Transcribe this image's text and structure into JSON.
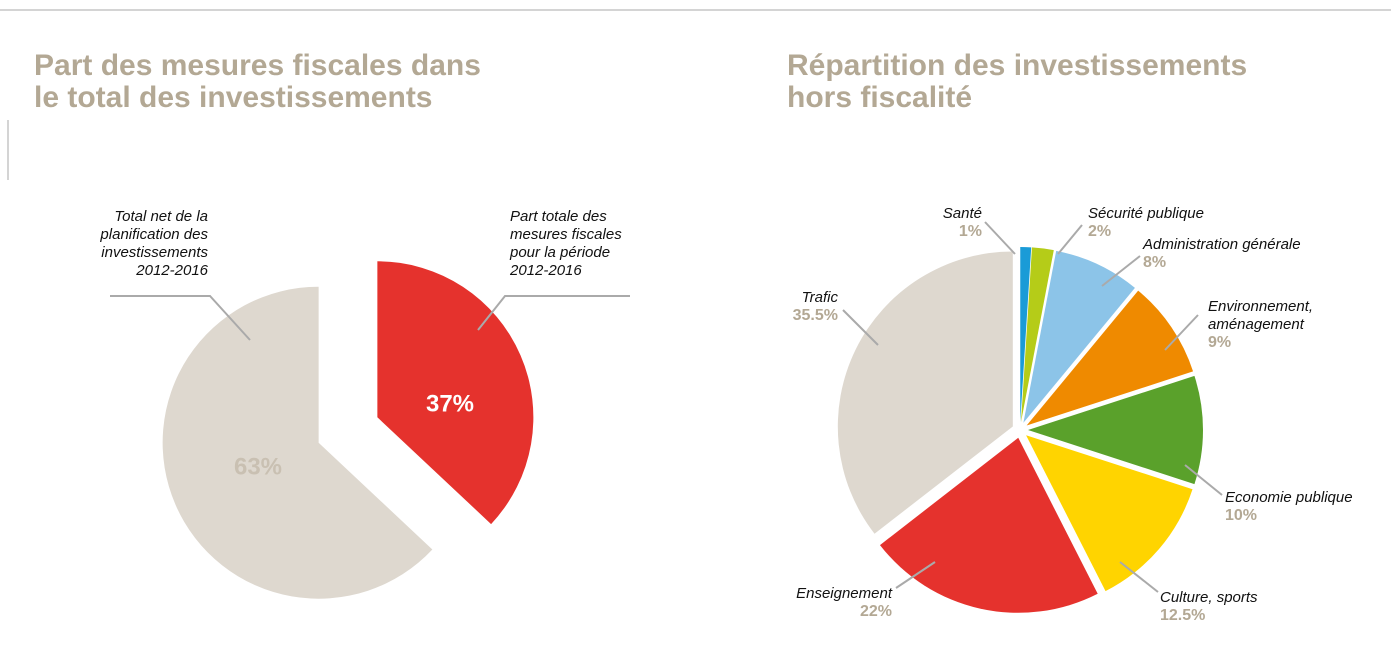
{
  "chart_data": [
    {
      "type": "pie",
      "title": "Part des mesures fiscales dans\nle total des investissements",
      "categories": [
        "Total net de la\nplanification des\ninvestissements\n2012-2016",
        "Part totale des\nmesures fiscales\npour la période\n2012-2016"
      ],
      "values": [
        63,
        37
      ],
      "value_labels": [
        "63%",
        "37%"
      ],
      "colors": [
        "#ded8cf",
        "#e5322d"
      ]
    },
    {
      "type": "pie",
      "title": "Répartition des investissements\nhors fiscalité",
      "categories": [
        "Santé",
        "Sécurité publique",
        "Administration générale",
        "Environnement,\naménagement",
        "Economie publique",
        "Culture, sports",
        "Enseignement",
        "Trafic"
      ],
      "values": [
        1,
        2,
        8,
        9,
        10,
        12.5,
        22,
        35.5
      ],
      "value_labels": [
        "1%",
        "2%",
        "8%",
        "9%",
        "10%",
        "12.5%",
        "22%",
        "35.5%"
      ],
      "colors": [
        "#1a9bd7",
        "#b5cc18",
        "#8cc4e8",
        "#ef8a00",
        "#5aa12b",
        "#ffd400",
        "#e5322d",
        "#ded8cf"
      ]
    }
  ]
}
